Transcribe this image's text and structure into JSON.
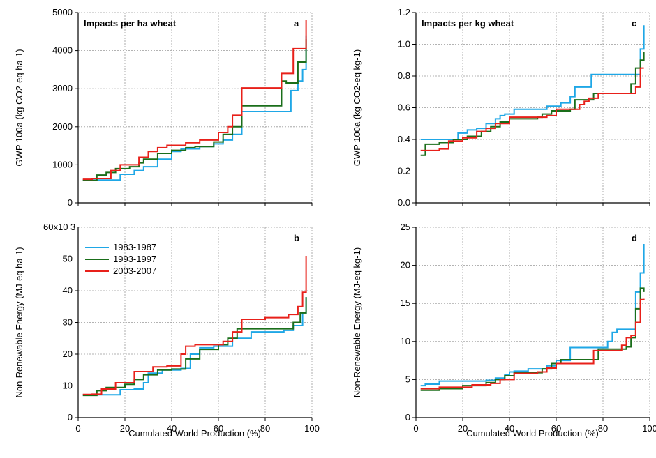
{
  "colors": {
    "1983-1987": "#1fa7e6",
    "1993-1997": "#1a6e1a",
    "2003-2007": "#e8201a"
  },
  "legend": [
    "1983-1987",
    "1993-1997",
    "2003-2007"
  ],
  "xlabel": "Cumulated World Production (%)",
  "chart_data": [
    {
      "panel": "a",
      "type": "line",
      "step": true,
      "title": "Impacts per ha wheat",
      "ylabel": "GWP 100a (kg CO2-eq ha-1)",
      "xlim": [
        0,
        100
      ],
      "ylim": [
        0,
        5000
      ],
      "xticks": [
        "0",
        "20",
        "40",
        "60",
        "80",
        "100"
      ],
      "yticks": [
        "0",
        "1000",
        "2000",
        "3000",
        "4000",
        "5000"
      ],
      "grid": true,
      "series": [
        {
          "name": "1983-1987",
          "x": [
            2,
            10,
            18,
            24,
            28,
            34,
            40,
            44,
            52,
            58,
            62,
            66,
            70,
            87,
            91,
            94,
            96,
            97.5
          ],
          "y": [
            600,
            600,
            750,
            850,
            950,
            1150,
            1350,
            1420,
            1480,
            1550,
            1650,
            1800,
            2400,
            2400,
            2950,
            3200,
            3500,
            4400
          ]
        },
        {
          "name": "1993-1997",
          "x": [
            2,
            8,
            12,
            16,
            22,
            26,
            28,
            34,
            40,
            46,
            50,
            58,
            62,
            66,
            70,
            87,
            89,
            94,
            96,
            97.5
          ],
          "y": [
            590,
            730,
            800,
            900,
            950,
            1050,
            1150,
            1300,
            1380,
            1450,
            1480,
            1600,
            1800,
            2000,
            2550,
            3200,
            3150,
            3700,
            3700,
            4300
          ]
        },
        {
          "name": "2003-2007",
          "x": [
            2,
            6,
            14,
            18,
            26,
            30,
            34,
            38,
            46,
            52,
            60,
            64,
            66,
            70,
            87,
            92,
            96,
            97.5
          ],
          "y": [
            620,
            640,
            850,
            1000,
            1200,
            1350,
            1450,
            1510,
            1580,
            1650,
            1850,
            2000,
            2300,
            3020,
            3400,
            4050,
            4050,
            4800
          ]
        }
      ]
    },
    {
      "panel": "b",
      "type": "line",
      "step": true,
      "title": "",
      "ylabel": "Non-Renewable Energy (MJ-eq ha-1)",
      "ymultiplier": "60x10 3",
      "xlim": [
        0,
        100
      ],
      "ylim": [
        0,
        60000
      ],
      "xticks": [
        "0",
        "20",
        "40",
        "60",
        "80",
        "100"
      ],
      "yticks": [
        "0",
        "10",
        "20",
        "30",
        "40",
        "50"
      ],
      "grid": true,
      "series": [
        {
          "name": "1983-1987",
          "x": [
            2,
            10,
            18,
            24,
            28,
            30,
            36,
            44,
            48,
            52,
            58,
            66,
            74,
            88,
            92,
            96,
            97.5
          ],
          "y": [
            7200,
            7200,
            8800,
            9000,
            11000,
            14000,
            15000,
            15500,
            20000,
            22000,
            22500,
            25000,
            27000,
            27500,
            29000,
            33000,
            38000
          ]
        },
        {
          "name": "1993-1997",
          "x": [
            2,
            8,
            12,
            20,
            24,
            28,
            34,
            40,
            46,
            52,
            60,
            64,
            68,
            88,
            92,
            95,
            97.5
          ],
          "y": [
            7000,
            8500,
            9500,
            10500,
            12000,
            13500,
            15000,
            15300,
            18500,
            21500,
            23000,
            25000,
            28000,
            28000,
            30000,
            33000,
            38000
          ]
        },
        {
          "name": "2003-2007",
          "x": [
            2,
            6,
            10,
            16,
            24,
            32,
            38,
            44,
            46,
            50,
            62,
            66,
            70,
            80,
            90,
            94,
            96,
            97.5
          ],
          "y": [
            7300,
            7400,
            9000,
            11000,
            14500,
            16000,
            16300,
            20000,
            22500,
            23000,
            24000,
            27000,
            31000,
            31500,
            32500,
            35000,
            39500,
            51000
          ]
        }
      ]
    },
    {
      "panel": "c",
      "type": "line",
      "step": true,
      "title": "Impacts per kg wheat",
      "ylabel": "GWP 100a (kg CO2-eq kg-1)",
      "xlim": [
        0,
        100
      ],
      "ylim": [
        0,
        1.2
      ],
      "xticks": [
        "0",
        "20",
        "40",
        "60",
        "80",
        "100"
      ],
      "yticks": [
        "0.0",
        "0.2",
        "0.4",
        "0.6",
        "0.8",
        "1.0",
        "1.2"
      ],
      "grid": true,
      "series": [
        {
          "name": "1983-1987",
          "x": [
            2,
            16,
            18,
            22,
            26,
            30,
            34,
            36,
            38,
            42,
            56,
            62,
            66,
            68,
            75,
            86,
            94,
            96,
            97.5
          ],
          "y": [
            0.4,
            0.4,
            0.44,
            0.46,
            0.47,
            0.5,
            0.53,
            0.55,
            0.56,
            0.59,
            0.61,
            0.63,
            0.67,
            0.73,
            0.81,
            0.81,
            0.81,
            0.97,
            1.12
          ]
        },
        {
          "name": "1993-1997",
          "x": [
            2,
            4,
            10,
            16,
            22,
            28,
            32,
            36,
            40,
            52,
            54,
            58,
            66,
            68,
            76,
            80,
            92,
            94,
            96,
            97.5
          ],
          "y": [
            0.3,
            0.37,
            0.38,
            0.4,
            0.42,
            0.45,
            0.48,
            0.51,
            0.53,
            0.54,
            0.56,
            0.58,
            0.59,
            0.65,
            0.69,
            0.69,
            0.75,
            0.85,
            0.9,
            0.95
          ]
        },
        {
          "name": "2003-2007",
          "x": [
            2,
            10,
            14,
            20,
            26,
            30,
            34,
            40,
            56,
            60,
            70,
            72,
            74,
            78,
            94,
            96,
            97.5
          ],
          "y": [
            0.33,
            0.34,
            0.39,
            0.41,
            0.45,
            0.47,
            0.5,
            0.54,
            0.55,
            0.59,
            0.62,
            0.64,
            0.66,
            0.69,
            0.73,
            0.85,
            0.85
          ]
        }
      ]
    },
    {
      "panel": "d",
      "type": "line",
      "step": true,
      "title": "",
      "ylabel": "Non-Renewable Energy (MJ-eq kg-1)",
      "xlim": [
        0,
        100
      ],
      "ylim": [
        0,
        25
      ],
      "xticks": [
        "0",
        "20",
        "40",
        "60",
        "80",
        "100"
      ],
      "yticks": [
        "0",
        "5",
        "10",
        "15",
        "20",
        "25"
      ],
      "grid": true,
      "series": [
        {
          "name": "1983-1987",
          "x": [
            2,
            4,
            10,
            30,
            34,
            38,
            40,
            42,
            48,
            56,
            60,
            66,
            80,
            82,
            84,
            86,
            94,
            96,
            97.5
          ],
          "y": [
            4.2,
            4.4,
            4.8,
            4.9,
            5.2,
            5.6,
            6.0,
            6.1,
            6.4,
            6.8,
            7.5,
            9.2,
            9.2,
            10.0,
            11.2,
            11.6,
            16.5,
            19.0,
            22.8
          ]
        },
        {
          "name": "1993-1997",
          "x": [
            2,
            10,
            20,
            30,
            34,
            38,
            42,
            54,
            58,
            62,
            70,
            78,
            86,
            90,
            92,
            94,
            96,
            97.5
          ],
          "y": [
            3.6,
            3.8,
            4.2,
            4.6,
            5.0,
            5.5,
            5.9,
            6.4,
            7.1,
            7.6,
            7.6,
            9.0,
            9.0,
            9.3,
            10.5,
            14.3,
            17.0,
            16.5
          ]
        },
        {
          "name": "2003-2007",
          "x": [
            2,
            10,
            16,
            24,
            32,
            36,
            42,
            52,
            56,
            60,
            70,
            76,
            84,
            88,
            90,
            92,
            94,
            96,
            97.5
          ],
          "y": [
            3.8,
            4.0,
            4.0,
            4.3,
            4.5,
            5.0,
            5.8,
            6.0,
            6.5,
            7.1,
            7.1,
            8.8,
            8.8,
            9.5,
            10.5,
            10.8,
            12.5,
            15.5,
            15.6
          ]
        }
      ]
    }
  ]
}
